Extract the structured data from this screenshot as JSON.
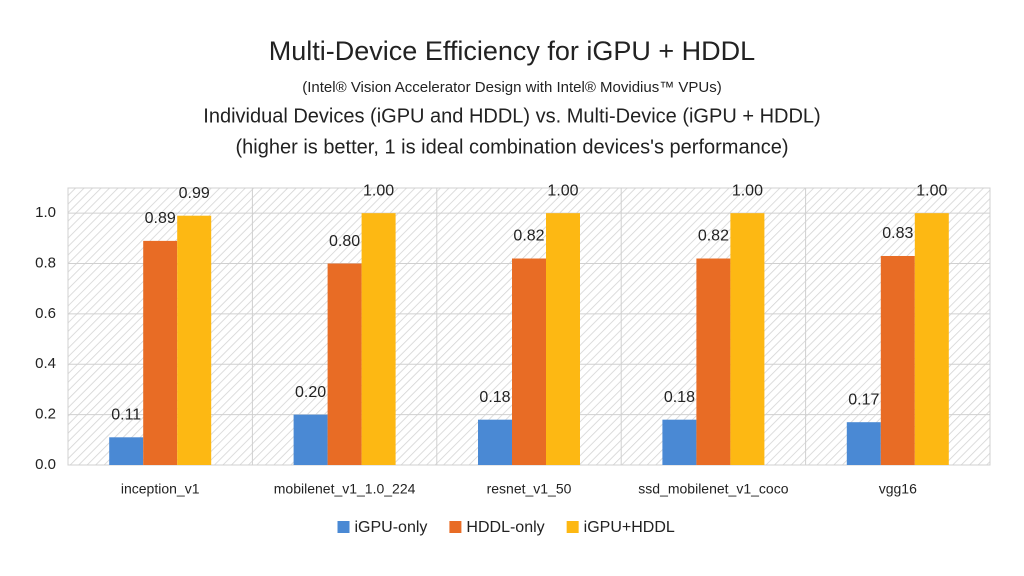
{
  "chart_data": {
    "type": "bar",
    "title": "Multi-Device Efficiency for iGPU + HDDL",
    "subtitle": [
      "(Intel® Vision Accelerator Design with Intel® Movidius™ VPUs)",
      "Individual Devices (iGPU and HDDL) vs. Multi-Device (iGPU + HDDL)",
      "(higher is better, 1 is ideal combination devices's performance)"
    ],
    "categories": [
      "inception_v1",
      "mobilenet_v1_1.0_224",
      "resnet_v1_50",
      "ssd_mobilenet_v1_coco",
      "vgg16"
    ],
    "series": [
      {
        "name": "iGPU-only",
        "color": "#4a89d4",
        "values": [
          0.11,
          0.2,
          0.18,
          0.18,
          0.17
        ],
        "value_labels": [
          "0.11",
          "0.20",
          "0.18",
          "0.18",
          "0.17"
        ]
      },
      {
        "name": "HDDL-only",
        "color": "#e86c25",
        "values": [
          0.89,
          0.8,
          0.82,
          0.82,
          0.83
        ],
        "value_labels": [
          "0.89",
          "0.80",
          "0.82",
          "0.82",
          "0.83"
        ]
      },
      {
        "name": "iGPU+HDDL",
        "color": "#fdb813",
        "values": [
          0.99,
          1,
          1,
          1,
          1
        ],
        "value_labels": [
          "0.99",
          "1.00",
          "1.00",
          "1.00",
          "1.00"
        ]
      }
    ],
    "ylim": [
      0,
      1.1
    ],
    "yticks": [
      {
        "value": 0,
        "label": "0.0"
      },
      0.2,
      0.4,
      0.6,
      0.8,
      {
        "value": 1,
        "label": "1.0"
      }
    ],
    "grid": true,
    "legend": "bottom"
  }
}
